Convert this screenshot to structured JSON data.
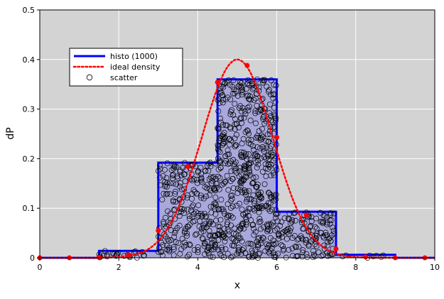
{
  "chart_data": {
    "type": "bar",
    "title": "",
    "xlabel": "x",
    "ylabel": "dP",
    "xlim": [
      0,
      10
    ],
    "ylim": [
      0,
      0.5
    ],
    "xticks": [
      0,
      2,
      4,
      6,
      8,
      10
    ],
    "yticks": [
      0,
      0.1,
      0.2,
      0.3,
      0.4,
      0.5
    ],
    "grid": true,
    "background": "#d3d3d3",
    "legend": {
      "position": "upper-left",
      "entries": [
        {
          "label": "histo (1000)",
          "style": "bar-outline"
        },
        {
          "label": "ideal density",
          "style": "dotted-line"
        },
        {
          "label": "scatter",
          "style": "open-circle"
        }
      ]
    },
    "series": [
      {
        "name": "histo (1000)",
        "type": "histogram",
        "color": "#0000ff",
        "fill": "#a8a8dc",
        "bin_edges": [
          0,
          1.5,
          3,
          4.5,
          6,
          7.5,
          9,
          10
        ],
        "values": [
          0.0,
          0.014,
          0.192,
          0.36,
          0.093,
          0.006,
          0.0
        ]
      },
      {
        "name": "ideal density",
        "type": "line",
        "color": "#ff0000",
        "style": "dotted",
        "markers_x": [
          0,
          0.75,
          1.5,
          2.25,
          3.0,
          3.75,
          4.5,
          5.25,
          6.0,
          6.75,
          7.5,
          8.25,
          9.0,
          9.75
        ],
        "markers_y": [
          0,
          0,
          0.0006,
          0.0055,
          0.055,
          0.184,
          0.354,
          0.388,
          0.243,
          0.086,
          0.018,
          0.002,
          0.0001,
          0
        ]
      },
      {
        "name": "scatter",
        "type": "scatter",
        "color": "#000000",
        "marker": "open-circle",
        "n": 1000,
        "x_range": [
          1.5,
          9.0
        ]
      }
    ]
  }
}
